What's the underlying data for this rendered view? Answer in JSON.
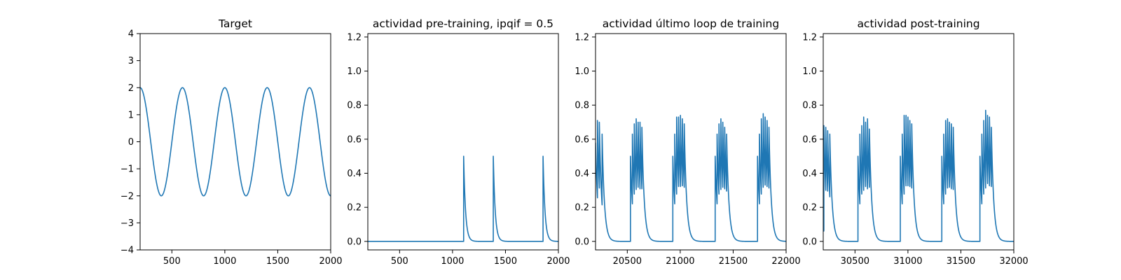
{
  "colors": {
    "series": "#1f77b4",
    "axes": "#000000",
    "background": "#ffffff"
  },
  "chart_data": [
    {
      "type": "line",
      "title": "Target",
      "xlabel": "",
      "ylabel": "",
      "xlim": [
        200,
        2000
      ],
      "ylim": [
        -4,
        4
      ],
      "xticks": [
        500,
        1000,
        1500,
        2000
      ],
      "yticks": [
        -4,
        -3,
        -2,
        -1,
        0,
        1,
        2,
        3,
        4
      ],
      "grid": false,
      "series": [
        {
          "kind": "cosine",
          "amplitude": 2,
          "period": 400,
          "phase_x": 200
        }
      ]
    },
    {
      "type": "line",
      "title": "actividad pre-training, ipqif = 0.5",
      "xlabel": "",
      "ylabel": "",
      "xlim": [
        200,
        2000
      ],
      "ylim": [
        -0.05,
        1.22
      ],
      "xticks": [
        500,
        1000,
        1500,
        2000
      ],
      "yticks": [
        0.0,
        0.2,
        0.4,
        0.6,
        0.8,
        1.0,
        1.2
      ],
      "grid": false,
      "series": [
        {
          "kind": "spikes",
          "baseline": 0,
          "tau": 18,
          "spikes": [
            [
              1105,
              0.5
            ],
            [
              1385,
              0.5
            ],
            [
              1855,
              0.5
            ]
          ]
        }
      ]
    },
    {
      "type": "line",
      "title": "actividad último loop de training",
      "xlabel": "",
      "ylabel": "",
      "xlim": [
        20200,
        22000
      ],
      "ylim": [
        -0.05,
        1.22
      ],
      "xticks": [
        20500,
        21000,
        21500,
        22000
      ],
      "yticks": [
        0.0,
        0.2,
        0.4,
        0.6,
        0.8,
        1.0,
        1.2
      ],
      "grid": false,
      "series": [
        {
          "kind": "spikes",
          "baseline": 0,
          "tau": 22,
          "start_value": 0.58,
          "spikes": [
            [
              20218,
              0.71
            ],
            [
              20236,
              0.7
            ],
            [
              20262,
              0.63
            ],
            [
              20530,
              0.5
            ],
            [
              20548,
              0.63
            ],
            [
              20566,
              0.69
            ],
            [
              20584,
              0.72
            ],
            [
              20602,
              0.7
            ],
            [
              20620,
              0.7
            ],
            [
              20638,
              0.67
            ],
            [
              20930,
              0.5
            ],
            [
              20948,
              0.63
            ],
            [
              20966,
              0.73
            ],
            [
              20984,
              0.73
            ],
            [
              21002,
              0.74
            ],
            [
              21020,
              0.72
            ],
            [
              21038,
              0.69
            ],
            [
              21330,
              0.5
            ],
            [
              21348,
              0.63
            ],
            [
              21366,
              0.69
            ],
            [
              21384,
              0.72
            ],
            [
              21402,
              0.7
            ],
            [
              21420,
              0.67
            ],
            [
              21438,
              0.63
            ],
            [
              21730,
              0.5
            ],
            [
              21748,
              0.63
            ],
            [
              21766,
              0.72
            ],
            [
              21784,
              0.75
            ],
            [
              21802,
              0.73
            ],
            [
              21820,
              0.71
            ],
            [
              21838,
              0.67
            ]
          ]
        }
      ]
    },
    {
      "type": "line",
      "title": "actividad post-training",
      "xlabel": "",
      "ylabel": "",
      "xlim": [
        30200,
        32000
      ],
      "ylim": [
        -0.05,
        1.22
      ],
      "xticks": [
        30500,
        31000,
        31500,
        32000
      ],
      "yticks": [
        0.0,
        0.2,
        0.4,
        0.6,
        0.8,
        1.0,
        1.2
      ],
      "grid": false,
      "series": [
        {
          "kind": "spikes",
          "baseline": 0,
          "tau": 22,
          "start_value": 0.08,
          "spikes": [
            [
              30206,
              0.68
            ],
            [
              30224,
              0.67
            ],
            [
              30242,
              0.65
            ],
            [
              30262,
              0.63
            ],
            [
              30528,
              0.5
            ],
            [
              30546,
              0.63
            ],
            [
              30564,
              0.68
            ],
            [
              30582,
              0.73
            ],
            [
              30600,
              0.7
            ],
            [
              30618,
              0.72
            ],
            [
              30636,
              0.66
            ],
            [
              30928,
              0.5
            ],
            [
              30946,
              0.63
            ],
            [
              30964,
              0.74
            ],
            [
              30982,
              0.74
            ],
            [
              31000,
              0.73
            ],
            [
              31018,
              0.71
            ],
            [
              31036,
              0.69
            ],
            [
              31320,
              0.5
            ],
            [
              31338,
              0.63
            ],
            [
              31356,
              0.71
            ],
            [
              31374,
              0.72
            ],
            [
              31392,
              0.7
            ],
            [
              31410,
              0.69
            ],
            [
              31428,
              0.67
            ],
            [
              31680,
              0.5
            ],
            [
              31698,
              0.63
            ],
            [
              31716,
              0.71
            ],
            [
              31734,
              0.77
            ],
            [
              31752,
              0.74
            ],
            [
              31770,
              0.73
            ],
            [
              31788,
              0.67
            ]
          ]
        }
      ]
    }
  ]
}
